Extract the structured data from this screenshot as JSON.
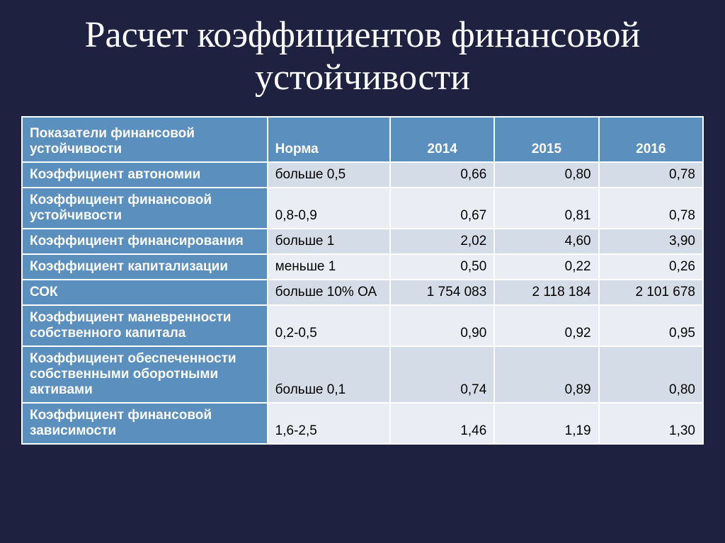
{
  "title": "Расчет коэффициентов финансовой устойчивости",
  "table": {
    "headers": {
      "indicator": "Показатели финансовой устойчивости",
      "norm": "Норма",
      "y2014": "2014",
      "y2015": "2015",
      "y2016": "2016"
    },
    "rows": [
      {
        "label": "Коэффициент автономии",
        "norm": "больше 0,5",
        "v2014": "0,66",
        "v2015": "0,80",
        "v2016": "0,78",
        "band": "a",
        "multiline": false
      },
      {
        "label": "Коэффициент финансовой устойчивости",
        "norm": "0,8-0,9",
        "v2014": "0,67",
        "v2015": "0,81",
        "v2016": "0,78",
        "band": "b",
        "multiline": true
      },
      {
        "label": "Коэффициент финансирования",
        "norm": "больше 1",
        "v2014": "2,02",
        "v2015": "4,60",
        "v2016": "3,90",
        "band": "a",
        "multiline": false
      },
      {
        "label": "Коэффициент капитализации",
        "norm": "меньше 1",
        "v2014": "0,50",
        "v2015": "0,22",
        "v2016": "0,26",
        "band": "b",
        "multiline": false
      },
      {
        "label": "СОК",
        "norm": "больше 10% ОА",
        "v2014": "1 754 083",
        "v2015": "2 118 184",
        "v2016": "2 101 678",
        "band": "a",
        "multiline": false
      },
      {
        "label": "Коэффициент маневренности собственного капитала",
        "norm": "0,2-0,5",
        "v2014": "0,90",
        "v2015": "0,92",
        "v2016": "0,95",
        "band": "b",
        "multiline": true
      },
      {
        "label": "Коэффициент обеспеченности собственными оборотными активами",
        "norm": "больше 0,1",
        "v2014": "0,74",
        "v2015": "0,89",
        "v2016": "0,80",
        "band": "a",
        "multiline": true
      },
      {
        "label": "Коэффициент финансовой зависимости",
        "norm": "1,6-2,5",
        "v2014": "1,46",
        "v2015": "1,19",
        "v2016": "1,30",
        "band": "b",
        "multiline": true
      }
    ]
  },
  "styling": {
    "background_color": "#1e2240",
    "title_color": "#ffffff",
    "title_fontsize": 52,
    "header_bg": "#5a8fbe",
    "header_text": "#ffffff",
    "label_bg": "#5a8fbe",
    "label_text": "#ffffff",
    "band_a_bg": "#d4dde7",
    "band_b_bg": "#eaeef4",
    "cell_text": "#000000",
    "border_color": "#ffffff",
    "cell_fontsize": 19
  }
}
